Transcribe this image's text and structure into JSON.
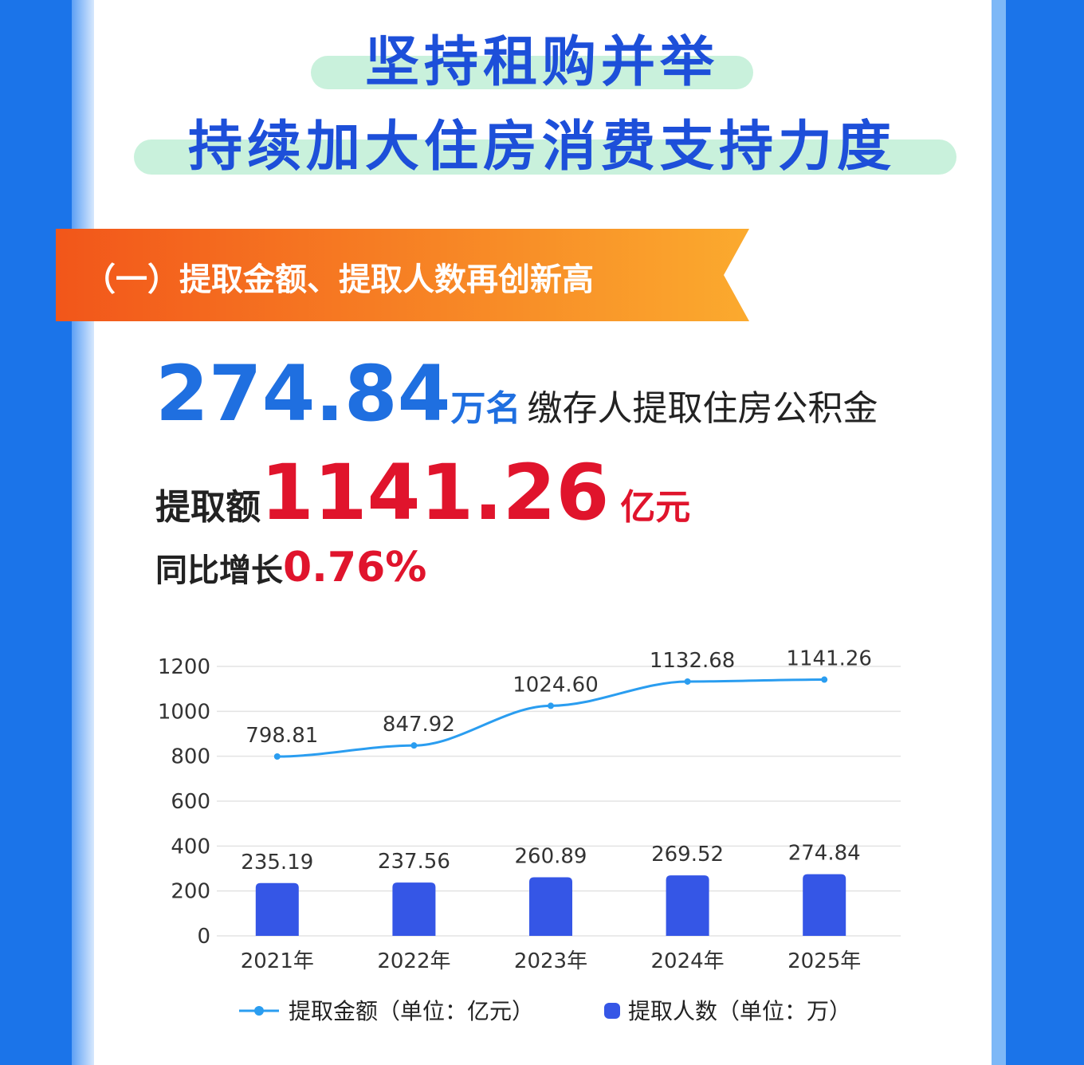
{
  "header": {
    "title_line1": "坚持租购并举",
    "title_line2": "持续加大住房消费支持力度"
  },
  "section": {
    "heading": "（一）提取金额、提取人数再创新高"
  },
  "stats": {
    "people_value": "274.84",
    "people_unit": "万名",
    "people_text": "缴存人提取住房公积金",
    "amount_label": "提取额",
    "amount_value": "1141.26",
    "amount_unit": "亿元",
    "growth_label": "同比增长",
    "growth_value": "0.76%"
  },
  "chart_data": {
    "type": "bar-line",
    "categories": [
      "2021年",
      "2022年",
      "2023年",
      "2024年",
      "2025年"
    ],
    "series": [
      {
        "name": "提取金额（单位：亿元）",
        "type": "line",
        "color": "#2a9df0",
        "values": [
          798.81,
          847.92,
          1024.6,
          1132.68,
          1141.26
        ],
        "value_labels": [
          "798.81",
          "847.92",
          "1024.60",
          "1132.68",
          "1141.26"
        ]
      },
      {
        "name": "提取人数（单位：万）",
        "type": "bar",
        "color": "#3556e6",
        "values": [
          235.19,
          237.56,
          260.89,
          269.52,
          274.84
        ]
      }
    ],
    "ylim": [
      0,
      1200
    ],
    "yticks": [
      0,
      200,
      400,
      600,
      800,
      1000,
      1200
    ],
    "grid": true
  }
}
